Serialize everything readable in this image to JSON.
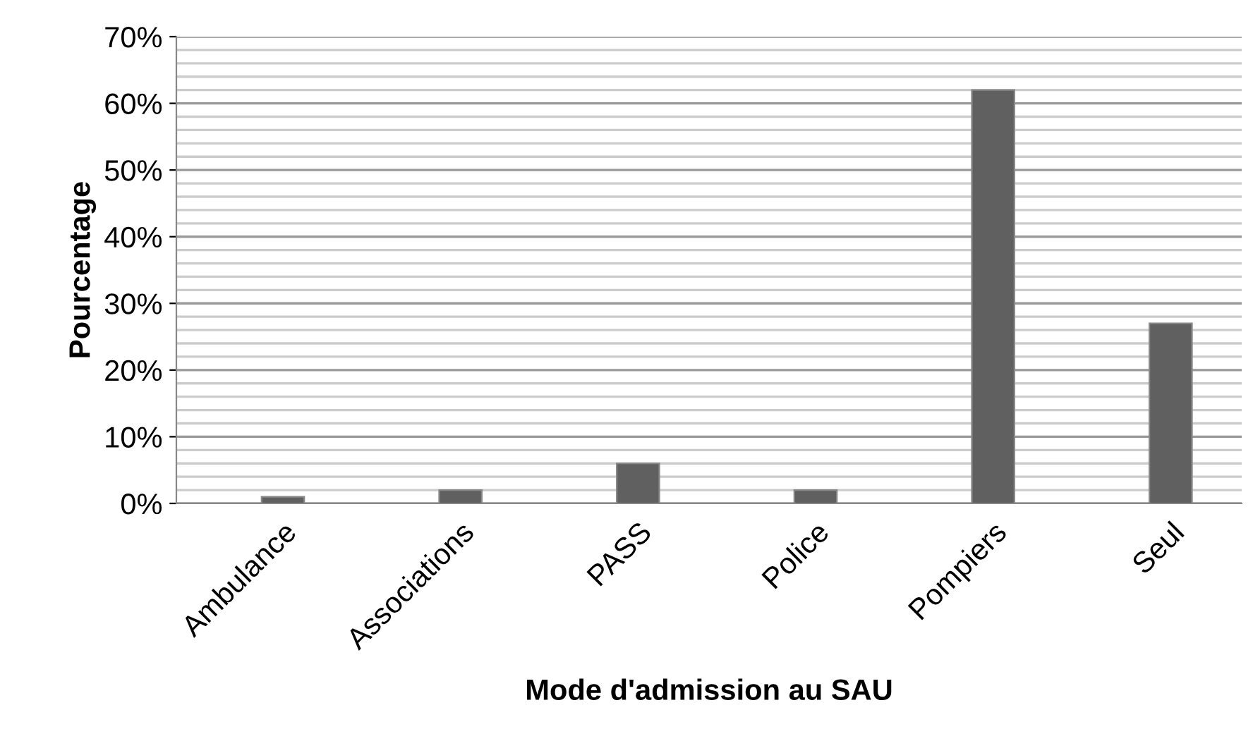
{
  "chart_data": {
    "type": "bar",
    "xlabel": "Mode d'admission au SAU",
    "ylabel": "Pourcentage",
    "categories": [
      "Ambulance",
      "Associations",
      "PASS",
      "Police",
      "Pompiers",
      "Seul"
    ],
    "values": [
      1,
      2,
      6,
      2,
      62,
      27
    ],
    "color": "#606060",
    "ylim": [
      0,
      70
    ],
    "yticks": [
      {
        "value": 0,
        "label": "0%"
      },
      {
        "value": 2,
        "label": null
      },
      {
        "value": 4,
        "label": null
      },
      {
        "value": 6,
        "label": null
      },
      {
        "value": 8,
        "label": null
      },
      {
        "value": 10,
        "label": "10%"
      },
      {
        "value": 12,
        "label": null
      },
      {
        "value": 14,
        "label": null
      },
      {
        "value": 16,
        "label": null
      },
      {
        "value": 18,
        "label": null
      },
      {
        "value": 20,
        "label": "20%"
      },
      {
        "value": 22,
        "label": null
      },
      {
        "value": 24,
        "label": null
      },
      {
        "value": 26,
        "label": null
      },
      {
        "value": 28,
        "label": null
      },
      {
        "value": 30,
        "label": "30%"
      },
      {
        "value": 32,
        "label": null
      },
      {
        "value": 34,
        "label": null
      },
      {
        "value": 36,
        "label": null
      },
      {
        "value": 38,
        "label": null
      },
      {
        "value": 40,
        "label": "40%"
      },
      {
        "value": 42,
        "label": null
      },
      {
        "value": 44,
        "label": null
      },
      {
        "value": 46,
        "label": null
      },
      {
        "value": 48,
        "label": null
      },
      {
        "value": 50,
        "label": "50%"
      },
      {
        "value": 52,
        "label": null
      },
      {
        "value": 54,
        "label": null
      },
      {
        "value": 56,
        "label": null
      },
      {
        "value": 58,
        "label": null
      },
      {
        "value": 60,
        "label": "60%"
      },
      {
        "value": 62,
        "label": null
      },
      {
        "value": 64,
        "label": null
      },
      {
        "value": 66,
        "label": null
      },
      {
        "value": 68,
        "label": null
      },
      {
        "value": 70,
        "label": "70%"
      }
    ],
    "grid": "y"
  }
}
